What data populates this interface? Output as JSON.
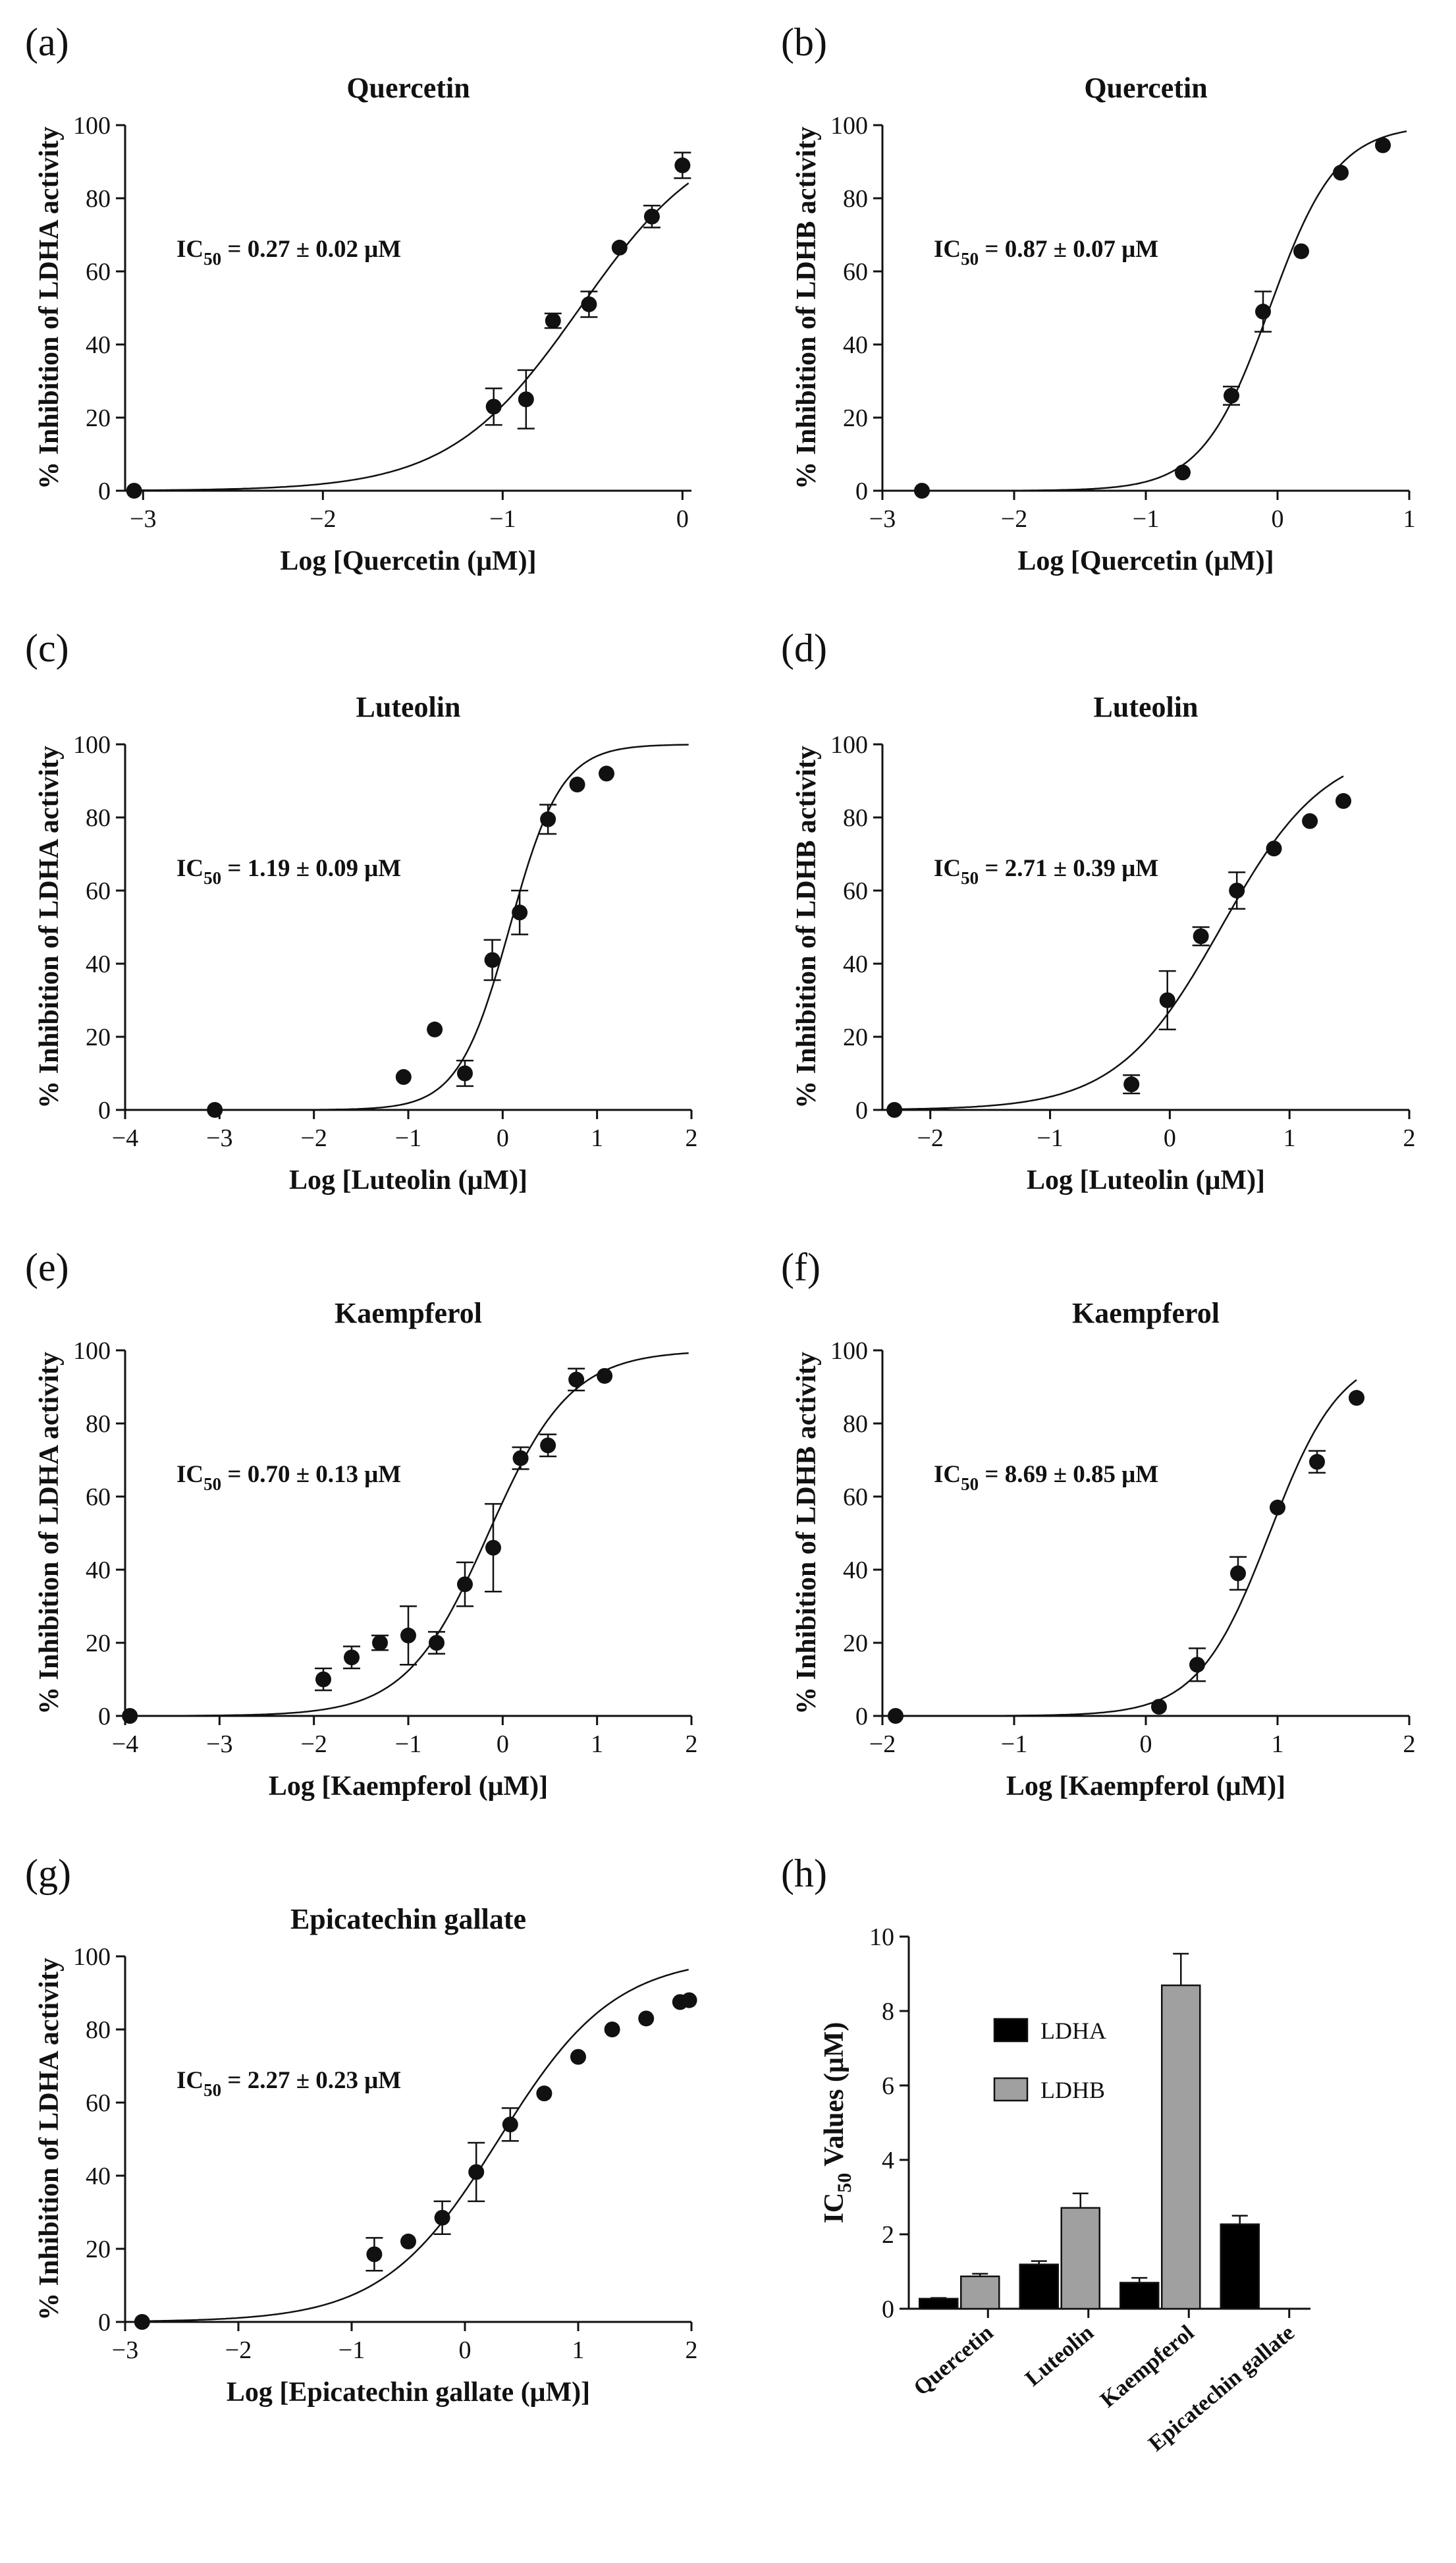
{
  "panel_labels": [
    "(a)",
    "(b)",
    "(c)",
    "(d)",
    "(e)",
    "(f)",
    "(g)",
    "(h)"
  ],
  "ic50_prefix": "IC",
  "ic50_sub": "50",
  "chart_data": [
    {
      "panel": "(a)",
      "type": "scatter",
      "fit": "sigmoid",
      "title": "Quercetin",
      "xlabel": "Log [Quercetin (μM)]",
      "ylabel": "% Inhibition of LDHA activity",
      "xlim": [
        -3.1,
        0.05
      ],
      "xticks": [
        -3,
        -2,
        -1,
        0
      ],
      "ylim": [
        0,
        100
      ],
      "yticks": [
        0,
        20,
        40,
        60,
        80,
        100
      ],
      "ic50_value": " = 0.27 ± 0.02 μM",
      "fit_params": {
        "log_ic50": -0.57,
        "hill": 1.2
      },
      "x": [
        -3.05,
        -1.05,
        -0.87,
        -0.72,
        -0.52,
        -0.35,
        -0.17,
        0.0
      ],
      "y": [
        0,
        23,
        25,
        46.5,
        51,
        66.5,
        75,
        89
      ],
      "err": [
        0,
        5,
        8,
        2,
        3.5,
        0,
        3,
        3.5
      ]
    },
    {
      "panel": "(b)",
      "type": "scatter",
      "fit": "sigmoid",
      "title": "Quercetin",
      "xlabel": "Log [Quercetin (μM)]",
      "ylabel": "% Inhibition of LDHB activity",
      "xlim": [
        -3,
        1
      ],
      "xticks": [
        -3,
        -2,
        -1,
        0,
        1
      ],
      "ylim": [
        0,
        100
      ],
      "yticks": [
        0,
        20,
        40,
        60,
        80,
        100
      ],
      "ic50_value": " = 0.87 ± 0.07 μM",
      "fit_params": {
        "log_ic50": -0.06,
        "hill": 1.7
      },
      "x": [
        -2.7,
        -0.72,
        -0.35,
        -0.11,
        0.18,
        0.48,
        0.8
      ],
      "y": [
        0,
        5,
        26,
        49,
        65.5,
        87,
        94.5
      ],
      "err": [
        0,
        0,
        2.5,
        5.5,
        0,
        0,
        0
      ]
    },
    {
      "panel": "(c)",
      "type": "scatter",
      "fit": "sigmoid",
      "title": "Luteolin",
      "xlabel": "Log [Luteolin (μM)]",
      "ylabel": "% Inhibition of LDHA activity",
      "xlim": [
        -4,
        2
      ],
      "xticks": [
        -4,
        -3,
        -2,
        -1,
        0,
        1,
        2
      ],
      "ylim": [
        0,
        100
      ],
      "yticks": [
        0,
        20,
        40,
        60,
        80,
        100
      ],
      "ic50_value": " = 1.19 ± 0.09 μM",
      "fit_params": {
        "log_ic50": 0.075,
        "hill": 1.6
      },
      "x": [
        -3.05,
        -1.05,
        -0.72,
        -0.4,
        -0.11,
        0.18,
        0.48,
        0.79,
        1.1
      ],
      "y": [
        0,
        9,
        22,
        10,
        41,
        54,
        79.5,
        89,
        92
      ],
      "err": [
        0,
        0,
        0,
        3.5,
        5.5,
        6,
        4,
        0,
        0
      ]
    },
    {
      "panel": "(d)",
      "type": "scatter",
      "fit": "sigmoid",
      "title": "Luteolin",
      "xlabel": "Log [Luteolin (μM)]",
      "ylabel": "% Inhibition of LDHB activity",
      "xlim": [
        -2.4,
        2
      ],
      "xticks": [
        -2,
        -1,
        0,
        1,
        2
      ],
      "ylim": [
        0,
        100
      ],
      "yticks": [
        0,
        20,
        40,
        60,
        80,
        100
      ],
      "ic50_value": " = 2.71 ± 0.39 μM",
      "fit_params": {
        "log_ic50": 0.43,
        "hill": 1.0
      },
      "fit_xmax": 1.45,
      "x": [
        -2.3,
        -0.32,
        -0.02,
        0.26,
        0.56,
        0.87,
        1.17,
        1.45
      ],
      "y": [
        0,
        7,
        30,
        47.5,
        60,
        71.5,
        79,
        84.5
      ],
      "err": [
        0,
        2.5,
        8,
        2.5,
        5,
        0,
        0,
        0
      ]
    },
    {
      "panel": "(e)",
      "type": "scatter",
      "fit": "sigmoid",
      "title": "Kaempferol",
      "xlabel": "Log [Kaempferol (μM)]",
      "ylabel": "% Inhibition of LDHA activity",
      "xlim": [
        -4,
        2
      ],
      "xticks": [
        -4,
        -3,
        -2,
        -1,
        0,
        1,
        2
      ],
      "ylim": [
        0,
        100
      ],
      "yticks": [
        0,
        20,
        40,
        60,
        80,
        100
      ],
      "ic50_value": " = 0.70 ± 0.13 μM",
      "fit_params": {
        "log_ic50": -0.15,
        "hill": 1.0
      },
      "x": [
        -3.95,
        -1.9,
        -1.6,
        -1.3,
        -1.0,
        -0.7,
        -0.4,
        -0.1,
        0.19,
        0.48,
        0.78,
        1.08
      ],
      "y": [
        0,
        10,
        16,
        20,
        22,
        20,
        36,
        46,
        70.5,
        74,
        92,
        93
      ],
      "err": [
        0,
        3,
        3,
        2,
        8,
        3,
        6,
        12,
        3,
        3,
        3,
        0
      ]
    },
    {
      "panel": "(f)",
      "type": "scatter",
      "fit": "sigmoid",
      "title": "Kaempferol",
      "xlabel": "Log [Kaempferol (μM)]",
      "ylabel": "% Inhibition of LDHB activity",
      "xlim": [
        -2,
        2
      ],
      "xticks": [
        -2,
        -1,
        0,
        1,
        2
      ],
      "ylim": [
        0,
        100
      ],
      "yticks": [
        0,
        20,
        40,
        60,
        80,
        100
      ],
      "ic50_value": " = 8.69 ± 0.85 μM",
      "fit_params": {
        "log_ic50": 0.94,
        "hill": 1.6
      },
      "fit_xmax": 1.6,
      "x": [
        -1.9,
        0.1,
        0.39,
        0.7,
        1.0,
        1.3,
        1.6
      ],
      "y": [
        0,
        2.5,
        14,
        39,
        57,
        69.5,
        87
      ],
      "err": [
        0,
        0,
        4.5,
        4.5,
        0,
        3,
        0
      ]
    },
    {
      "panel": "(g)",
      "type": "scatter",
      "fit": "sigmoid",
      "title": "Epicatechin gallate",
      "xlabel": "Log [Epicatechin gallate (μM)]",
      "ylabel": "% Inhibition of LDHA activity",
      "xlim": [
        -3,
        2
      ],
      "xticks": [
        -3,
        -2,
        -1,
        0,
        1,
        2
      ],
      "ylim": [
        0,
        100
      ],
      "yticks": [
        0,
        20,
        40,
        60,
        80,
        100
      ],
      "ic50_value": " = 2.27 ± 0.23 μM",
      "fit_params": {
        "log_ic50": 0.3,
        "hill": 0.85
      },
      "x": [
        -2.85,
        -0.8,
        -0.5,
        -0.2,
        0.1,
        0.4,
        0.7,
        1.0,
        1.3,
        1.6,
        1.9,
        1.98
      ],
      "y": [
        0,
        18.5,
        22,
        28.5,
        41,
        54,
        62.5,
        72.5,
        80,
        83,
        87.5,
        88
      ],
      "err": [
        0,
        4.5,
        0,
        4.5,
        8,
        4.5,
        0,
        0,
        0,
        0,
        0,
        0
      ]
    },
    {
      "panel": "(h)",
      "type": "bar",
      "ylabel_prefix": "IC",
      "ylabel_sub": "50",
      "ylabel_suffix": " Values (μM)",
      "categories": [
        "Quercetin",
        "Luteolin",
        "Kaempferol",
        "Epicatechin gallate"
      ],
      "ylim": [
        0,
        10
      ],
      "yticks": [
        0,
        2,
        4,
        6,
        8,
        10
      ],
      "series": [
        {
          "name": "LDHA",
          "color": "#000000",
          "values": [
            0.27,
            1.19,
            0.7,
            2.27
          ],
          "err": [
            0.02,
            0.09,
            0.13,
            0.23
          ]
        },
        {
          "name": "LDHB",
          "color": "#a0a0a0",
          "values": [
            0.87,
            2.71,
            8.69,
            null
          ],
          "err": [
            0.07,
            0.39,
            0.85,
            null
          ]
        }
      ]
    }
  ]
}
